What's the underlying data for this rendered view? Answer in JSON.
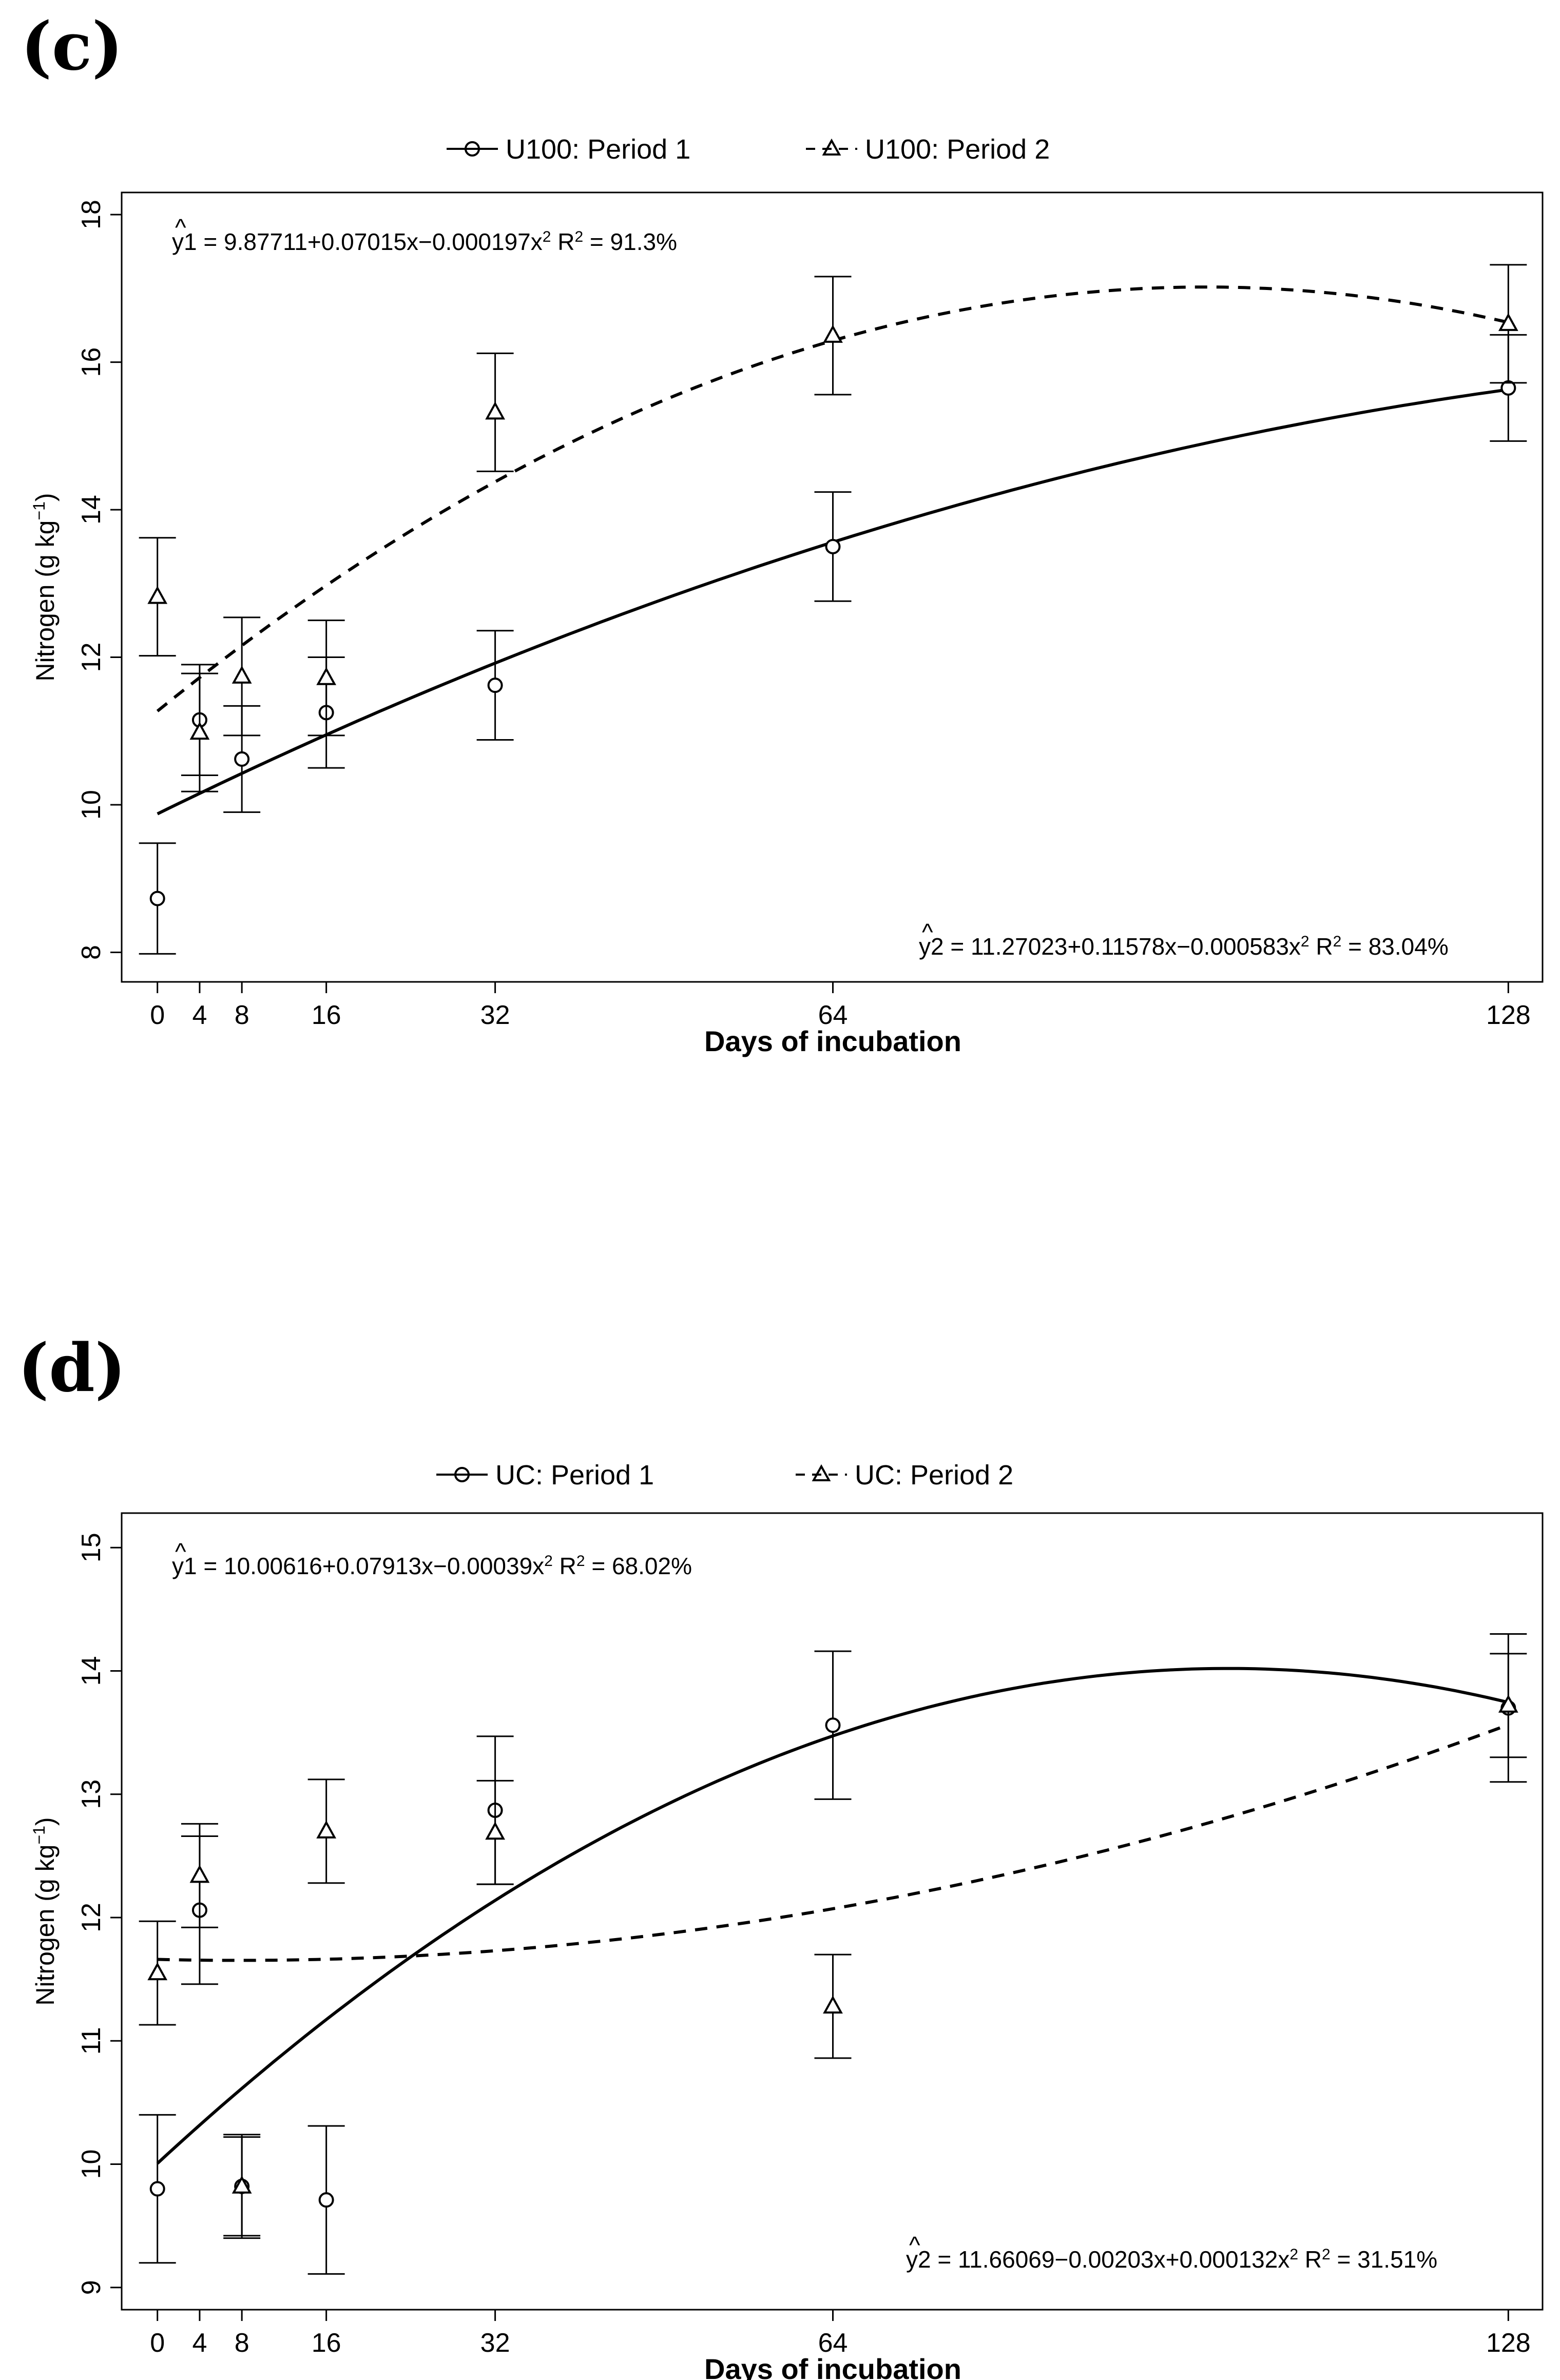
{
  "chart_data": [
    {
      "type": "scatter",
      "panel_label": "(c)",
      "legend": [
        {
          "name": "U100: Period 1",
          "marker": "circle",
          "line": "solid"
        },
        {
          "name": "U100: Period 2",
          "marker": "triangle",
          "line": "dashed"
        }
      ],
      "xlabel": "Days of incubation",
      "ylabel": "Nitrogen (g kg",
      "ylabel_sup": "−1",
      "ylabel_end": ")",
      "xticks": [
        0,
        4,
        8,
        16,
        32,
        64,
        128
      ],
      "yticks": [
        8,
        10,
        12,
        14,
        16,
        18
      ],
      "xlim": [
        -3,
        131
      ],
      "ylim": [
        7.6,
        18.3
      ],
      "series": [
        {
          "name": "U100: Period 1",
          "marker": "circle",
          "x": [
            0,
            4,
            8,
            16,
            32,
            64,
            128
          ],
          "y": [
            8.73,
            11.15,
            10.62,
            11.25,
            11.62,
            13.5,
            15.65
          ],
          "err": [
            0.75,
            0.75,
            0.72,
            0.75,
            0.74,
            0.74,
            0.72
          ],
          "fit": {
            "a": 9.87711,
            "b": 0.07015,
            "c": -0.000197,
            "line": "solid"
          }
        },
        {
          "name": "U100: Period 2",
          "marker": "triangle",
          "x": [
            0,
            4,
            8,
            16,
            32,
            64,
            128
          ],
          "y": [
            12.82,
            10.98,
            11.74,
            11.72,
            15.32,
            16.36,
            16.52
          ],
          "err": [
            0.8,
            0.8,
            0.8,
            0.78,
            0.8,
            0.8,
            0.8
          ],
          "fit": {
            "a": 11.27023,
            "b": 0.11578,
            "c": -0.000583,
            "line": "dashed"
          }
        }
      ],
      "equations": [
        {
          "label": "y1",
          "text": " = 9.87711+0.07015x−0.000197x",
          "sup": "2",
          "r2_prefix": "  R",
          "r2_sup": "2",
          "r2_value": " = 91.3%"
        },
        {
          "label": "y2",
          "text": " = 11.27023+0.11578x−0.000583x",
          "sup": "2",
          "r2_prefix": "  R",
          "r2_sup": "2",
          "r2_value": " = 83.04%"
        }
      ]
    },
    {
      "type": "scatter",
      "panel_label": "(d)",
      "legend": [
        {
          "name": "UC: Period 1",
          "marker": "circle",
          "line": "solid"
        },
        {
          "name": "UC: Period 2",
          "marker": "triangle",
          "line": "dashed"
        }
      ],
      "xlabel": "Days of incubation",
      "ylabel": "Nitrogen (g kg",
      "ylabel_sup": "−1",
      "ylabel_end": ")",
      "xticks": [
        0,
        4,
        8,
        16,
        32,
        64,
        128
      ],
      "yticks": [
        9,
        10,
        11,
        12,
        13,
        14,
        15
      ],
      "xlim": [
        -3,
        131
      ],
      "ylim": [
        8.82,
        15.28
      ],
      "series": [
        {
          "name": "UC: Period 1",
          "marker": "circle",
          "x": [
            0,
            4,
            8,
            16,
            32,
            64,
            128
          ],
          "y": [
            9.8,
            12.06,
            9.82,
            9.71,
            12.87,
            13.56,
            13.7
          ],
          "err": [
            0.6,
            0.6,
            0.4,
            0.6,
            0.6,
            0.6,
            0.6
          ],
          "fit": {
            "a": 10.00616,
            "b": 0.07913,
            "c": -0.00039,
            "line": "solid"
          }
        },
        {
          "name": "UC: Period 2",
          "marker": "triangle",
          "x": [
            0,
            4,
            8,
            16,
            32,
            64,
            128
          ],
          "y": [
            11.55,
            12.34,
            9.82,
            12.7,
            12.69,
            11.28,
            13.72
          ],
          "err": [
            0.42,
            0.42,
            0.42,
            0.42,
            0.42,
            0.42,
            0.42
          ],
          "fit": {
            "a": 11.66069,
            "b": -0.00203,
            "c": 0.000132,
            "line": "dashed"
          }
        }
      ],
      "equations": [
        {
          "label": "y1",
          "text": " = 10.00616+0.07913x−0.00039x",
          "sup": "2",
          "r2_prefix": "  R",
          "r2_sup": "2",
          "r2_value": " = 68.02%"
        },
        {
          "label": "y2",
          "text": " = 11.66069−0.00203x+0.000132x",
          "sup": "2",
          "r2_prefix": "  R",
          "r2_sup": "2",
          "r2_value": " = 31.51%"
        }
      ]
    }
  ]
}
